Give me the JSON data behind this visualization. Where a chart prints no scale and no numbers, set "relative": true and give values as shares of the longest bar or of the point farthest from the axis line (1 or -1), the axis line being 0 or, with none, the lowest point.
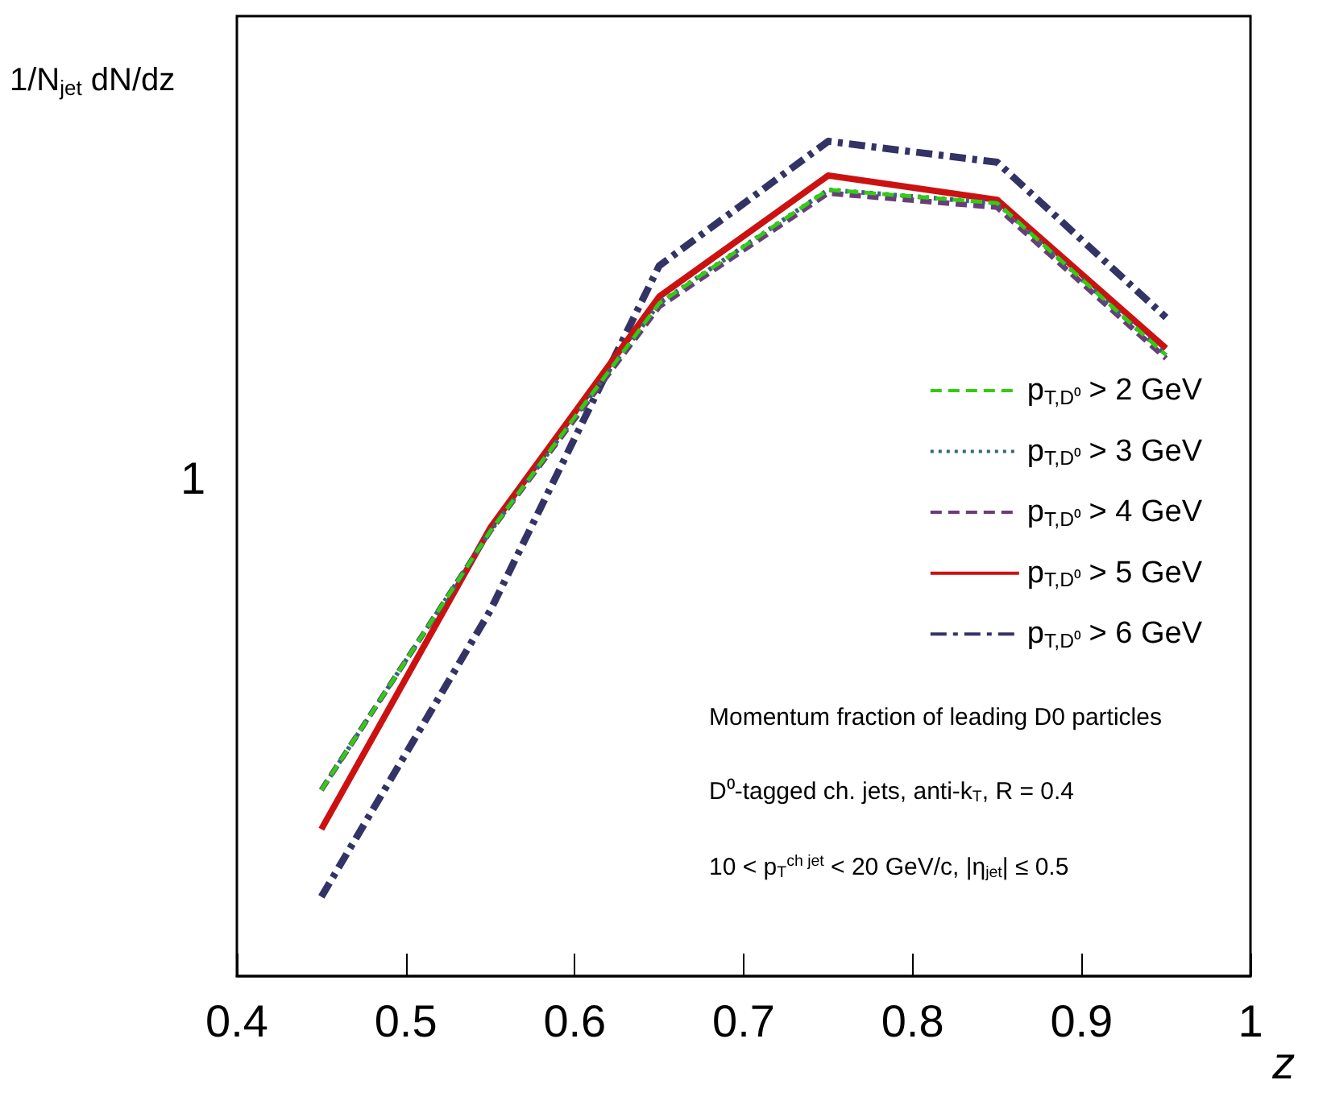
{
  "chart_data": {
    "type": "line",
    "xlabel": "z",
    "ylabel": "1/N$_{jet}$ dN/dz",
    "x": [
      0.45,
      0.55,
      0.65,
      0.75,
      0.85,
      0.95
    ],
    "series": [
      {
        "name": "p$_{T,D⁰}$ > 2 GeV",
        "color": "#33cc11",
        "line_style": "dashed",
        "values": [
          0.223,
          0.533,
          0.806,
          0.942,
          0.926,
          0.744
        ]
      },
      {
        "name": "p$_{T,D⁰}$ > 3 GeV",
        "color": "#336677",
        "line_style": "dotted",
        "values": [
          0.223,
          0.533,
          0.806,
          0.942,
          0.926,
          0.744
        ]
      },
      {
        "name": "p$_{T,D⁰}$ > 4 GeV",
        "color": "#6a3d7a",
        "line_style": "dashed",
        "values": [
          0.223,
          0.533,
          0.802,
          0.938,
          0.921,
          0.74
        ]
      },
      {
        "name": "p$_{T,D⁰}$ > 5 GeV",
        "color": "#cc1111",
        "line_style": "solid",
        "values": [
          0.176,
          0.537,
          0.814,
          0.959,
          0.93,
          0.752
        ]
      },
      {
        "name": "p$_{T,D⁰}$ > 6 GeV",
        "color": "#333366",
        "line_style": "dashdot",
        "values": [
          0.095,
          0.438,
          0.851,
          1,
          0.975,
          0.789
        ]
      }
    ],
    "relative": true,
    "xlim": [
      0.4,
      1
    ],
    "xticks": [
      {
        "value": 0.4,
        "label": "0.4"
      },
      {
        "value": 0.5,
        "label": "0.5"
      },
      {
        "value": 0.6,
        "label": "0.6"
      },
      {
        "value": 0.7,
        "label": "0.7"
      },
      {
        "value": 0.8,
        "label": "0.8"
      },
      {
        "value": 0.9,
        "label": "0.9"
      },
      {
        "value": 1,
        "label": "1"
      }
    ],
    "marker": "none",
    "grid": false,
    "legend": "right",
    "annotations": [
      "1",
      "Momentum fraction of leading D0 particles",
      "D⁰-tagged ch. jets, anti-k$_{T}$, R = 0.4",
      "10 < p$_{T}$$^{ch jet}$ < 20 GeV/c, |η$_{jet}$| ≤ 0.5"
    ]
  }
}
